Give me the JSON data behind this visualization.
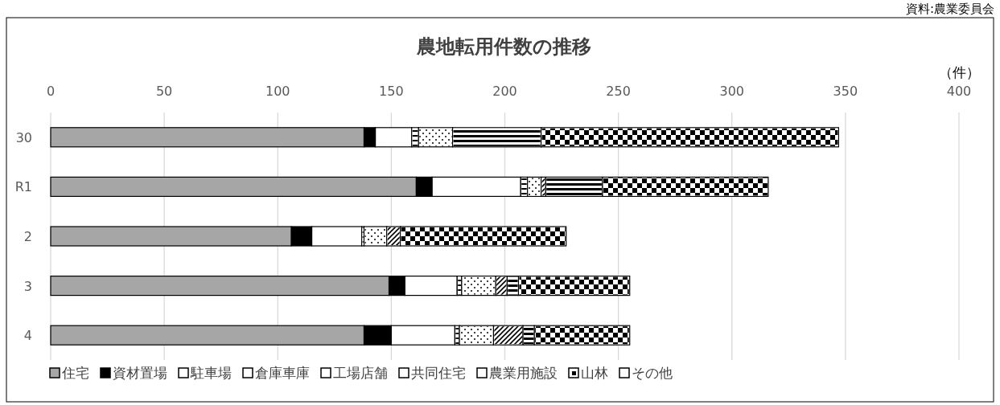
{
  "chart_data": {
    "type": "bar",
    "orientation": "horizontal",
    "stacked": true,
    "title": "農地転用件数の推移",
    "xlabel": "（件）",
    "annotations": [
      "資料:農業委員会"
    ],
    "categories": [
      "30",
      "R1",
      "2",
      "3",
      "4"
    ],
    "series": [
      {
        "name": "住宅",
        "color": "#a6a6a6",
        "values": [
          138,
          161,
          106,
          149,
          138
        ]
      },
      {
        "name": "資材置場",
        "color": "#000000",
        "values": [
          5,
          7,
          9,
          7,
          12
        ]
      },
      {
        "name": "駐車場",
        "color": "#ffffff",
        "values": [
          16,
          39,
          22,
          23,
          28
        ]
      },
      {
        "name": "倉庫車庫",
        "color": "#ffffff",
        "values": [
          3,
          3,
          1,
          2,
          2
        ]
      },
      {
        "name": "工場店舗",
        "color": "#ffffff",
        "values": [
          15,
          6,
          10,
          15,
          15
        ]
      },
      {
        "name": "共同住宅",
        "color": "#ffffff",
        "values": [
          0,
          2,
          6,
          5,
          13
        ]
      },
      {
        "name": "農業用施設",
        "color": "#ffffff",
        "values": [
          39,
          25,
          0,
          5,
          5
        ]
      },
      {
        "name": "山林",
        "color": "#ffffff",
        "values": [
          0,
          0,
          0,
          0,
          0
        ]
      },
      {
        "name": "その他",
        "color": "#ffffff",
        "values": [
          131,
          73,
          73,
          49,
          42
        ]
      }
    ],
    "xlim": [
      0,
      400
    ],
    "xticks": [
      0,
      50,
      100,
      150,
      200,
      250,
      300,
      350,
      400
    ],
    "grid": "x",
    "legend": "bottom"
  }
}
